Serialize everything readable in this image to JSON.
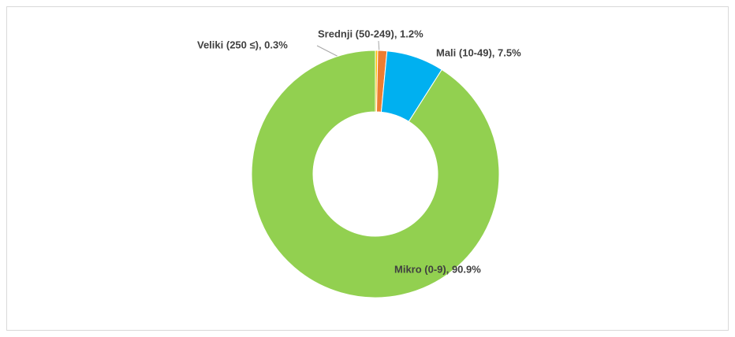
{
  "chart_data": {
    "type": "donut",
    "values": [
      0.3,
      1.2,
      7.5,
      90.9
    ],
    "value_labels": [
      "Veliki (250 ≤), 0.3%",
      "Srednji (50-249), 1.2%",
      "Mali (10-49), 7.5%",
      "Mikro (0-9), 90.9%"
    ],
    "colors": [
      "#ffc000",
      "#ed7d31",
      "#00b0f0",
      "#92d050"
    ]
  }
}
